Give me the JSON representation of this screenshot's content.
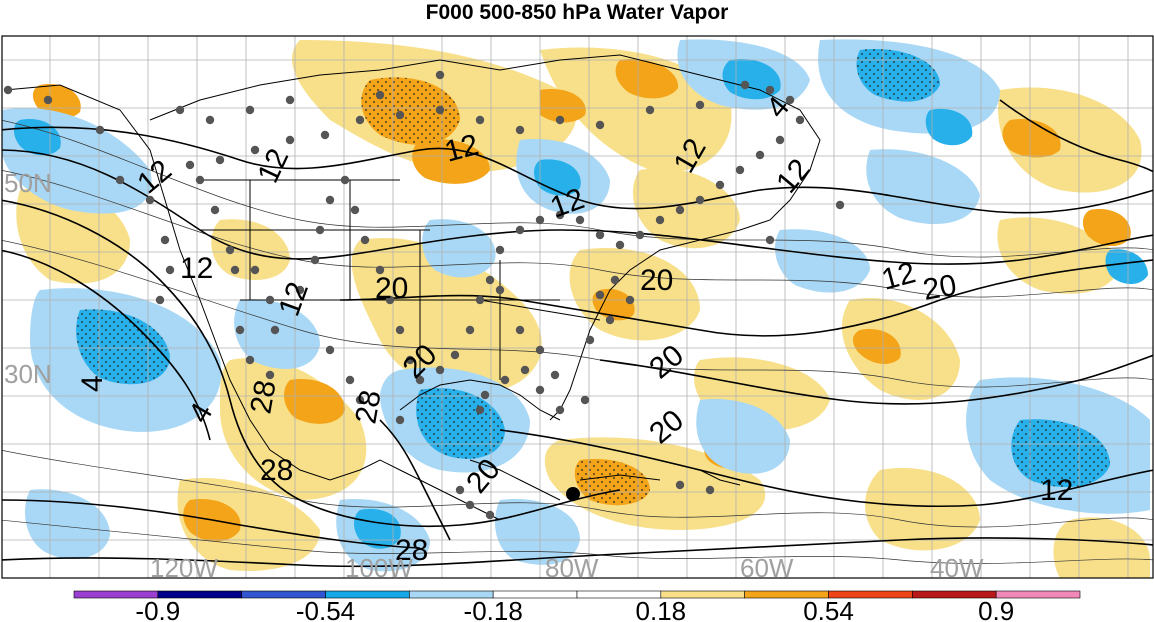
{
  "title": "F000 500-850 hPa Water Vapor",
  "colors": {
    "pos_light": "#f8e08a",
    "pos_med": "#f4a418",
    "neg_light": "#a8d8f5",
    "neg_med": "#28b0ea",
    "border": "#000000",
    "station": "#555555",
    "grid": "#b0b0b0"
  },
  "colorbar": {
    "colors": [
      "#9a3fd0",
      "#00008b",
      "#3155d0",
      "#16a8e6",
      "#a8d8f5",
      "#ffffff",
      "#ffffff",
      "#f8e08a",
      "#f4a418",
      "#ee4418",
      "#b81818",
      "#f088b8"
    ],
    "tick_labels": [
      "-0.9",
      "-0.54",
      "-0.18",
      "0.18",
      "0.54",
      "0.9"
    ],
    "tick_values": [
      -0.9,
      -0.54,
      -0.18,
      0.18,
      0.54,
      0.9
    ]
  },
  "lat_labels": [
    "50N",
    "30N"
  ],
  "lon_labels": [
    "120W",
    "100W",
    "80W",
    "60W",
    "40W"
  ],
  "contour_labels": [
    "12",
    "12",
    "12",
    "12",
    "12",
    "12",
    "12",
    "12",
    "20",
    "20",
    "20",
    "20",
    "20",
    "20",
    "20",
    "28",
    "28",
    "28",
    "28",
    "4",
    "4",
    "4",
    "12",
    "12"
  ]
}
